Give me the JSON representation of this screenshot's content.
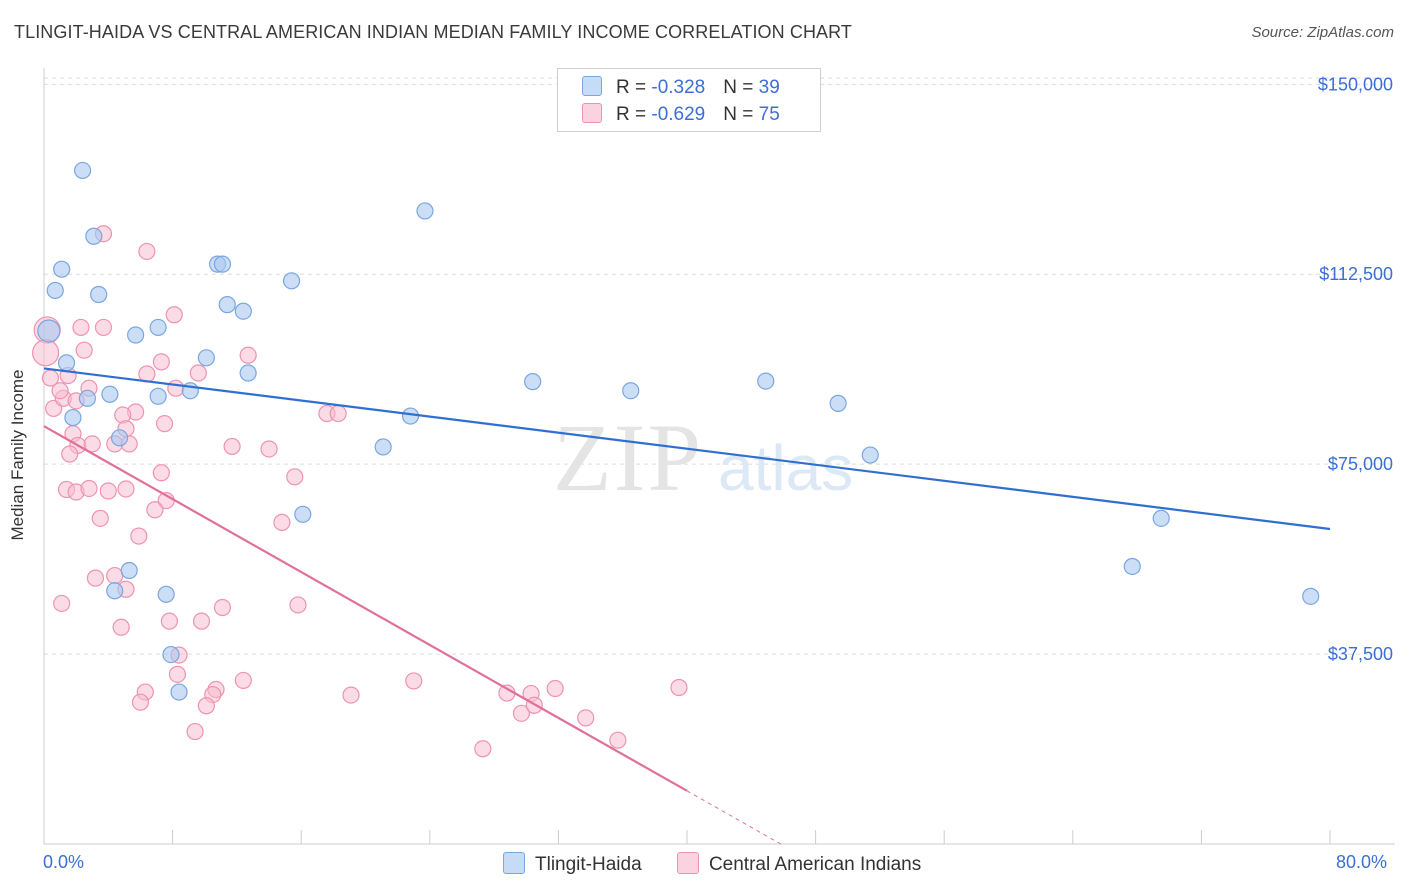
{
  "title": "TLINGIT-HAIDA VS CENTRAL AMERICAN INDIAN MEDIAN FAMILY INCOME CORRELATION CHART",
  "source": "Source: ZipAtlas.com",
  "watermark": {
    "zip": "ZIP",
    "atlas": "atlas"
  },
  "colors": {
    "blue_fill": "#a8c8f0",
    "blue_stroke": "#7aa6e0",
    "blue_line": "#2f6fcf",
    "pink_fill": "#f7bdd0",
    "pink_stroke": "#ee93b0",
    "pink_line": "#e0709a",
    "grid": "#dcdcdc",
    "axis_text": "#3b6fd4"
  },
  "legend_top": [
    {
      "series": "Tlingit-Haida",
      "r_label": "R = ",
      "r": "-0.328",
      "n_label": "N = ",
      "n": "39"
    },
    {
      "series": "Central American Indians",
      "r_label": "R = ",
      "r": "-0.629",
      "n_label": "N = ",
      "n": "75"
    }
  ],
  "chart_data": {
    "type": "scatter",
    "title": "TLINGIT-HAIDA VS CENTRAL AMERICAN INDIAN MEDIAN FAMILY INCOME CORRELATION CHART",
    "xlabel": "",
    "ylabel": "Median Family Income",
    "xlim": [
      0,
      80
    ],
    "ylim": [
      0,
      155000
    ],
    "x_tick_labels": [
      "0.0%",
      "80.0%"
    ],
    "y_ticks": [
      37500,
      75000,
      112500,
      150000
    ],
    "y_tick_labels": [
      "$37,500",
      "$75,000",
      "$112,500",
      "$150,000"
    ],
    "legend_position": "top-center",
    "series": [
      {
        "name": "Tlingit-Haida",
        "r": -0.328,
        "n": 39,
        "trend": {
          "x": [
            0,
            80
          ],
          "y": [
            93900,
            62200
          ]
        },
        "points": [
          [
            2.4,
            133000
          ],
          [
            3.1,
            120000
          ],
          [
            1.1,
            113500
          ],
          [
            0.7,
            109300
          ],
          [
            3.4,
            108500
          ],
          [
            10.8,
            114500
          ],
          [
            11.1,
            114500
          ],
          [
            15.4,
            111200
          ],
          [
            23.7,
            125000
          ],
          [
            11.4,
            106500
          ],
          [
            12.4,
            105200
          ],
          [
            7.1,
            102000
          ],
          [
            5.7,
            100500
          ],
          [
            0.3,
            101300
          ],
          [
            10.1,
            96000
          ],
          [
            1.4,
            95000
          ],
          [
            12.7,
            93000
          ],
          [
            9.1,
            89500
          ],
          [
            7.1,
            88400
          ],
          [
            4.1,
            88800
          ],
          [
            2.7,
            88000
          ],
          [
            1.8,
            84200
          ],
          [
            22.8,
            84500
          ],
          [
            4.7,
            80200
          ],
          [
            21.1,
            78400
          ],
          [
            30.4,
            91300
          ],
          [
            36.5,
            89500
          ],
          [
            44.9,
            91400
          ],
          [
            49.4,
            87000
          ],
          [
            51.4,
            76800
          ],
          [
            16.1,
            65100
          ],
          [
            69.5,
            64300
          ],
          [
            67.7,
            54800
          ],
          [
            78.8,
            48900
          ],
          [
            5.3,
            54000
          ],
          [
            7.6,
            49300
          ],
          [
            4.4,
            50000
          ],
          [
            7.9,
            37400
          ],
          [
            8.4,
            30000
          ]
        ]
      },
      {
        "name": "Central American Indians",
        "r": -0.629,
        "n": 75,
        "trend": {
          "x": [
            0,
            40
          ],
          "y": [
            82500,
            10500
          ]
        },
        "trend_dashed": {
          "x": [
            40,
            46
          ],
          "y": [
            10500,
            -300
          ]
        },
        "points": [
          [
            0.2,
            101500
          ],
          [
            0.1,
            97000
          ],
          [
            0.4,
            92000
          ],
          [
            0.6,
            86000
          ],
          [
            1.2,
            88000
          ],
          [
            2.3,
            102000
          ],
          [
            2.5,
            97500
          ],
          [
            3.7,
            102000
          ],
          [
            6.4,
            117000
          ],
          [
            3.7,
            120500
          ],
          [
            8.1,
            104500
          ],
          [
            7.3,
            95200
          ],
          [
            6.4,
            92800
          ],
          [
            1.5,
            92500
          ],
          [
            8.2,
            90000
          ],
          [
            12.7,
            96500
          ],
          [
            9.6,
            93000
          ],
          [
            2.8,
            90000
          ],
          [
            1.0,
            89500
          ],
          [
            2.0,
            87500
          ],
          [
            5.7,
            85300
          ],
          [
            4.9,
            84700
          ],
          [
            7.5,
            83000
          ],
          [
            5.1,
            82000
          ],
          [
            1.8,
            81000
          ],
          [
            17.6,
            85000
          ],
          [
            18.3,
            85000
          ],
          [
            2.1,
            78700
          ],
          [
            3.0,
            79000
          ],
          [
            4.4,
            79000
          ],
          [
            5.3,
            79000
          ],
          [
            1.6,
            77000
          ],
          [
            11.7,
            78500
          ],
          [
            14.0,
            78000
          ],
          [
            7.3,
            73300
          ],
          [
            15.6,
            72500
          ],
          [
            1.4,
            70000
          ],
          [
            2.0,
            69500
          ],
          [
            2.8,
            70200
          ],
          [
            4.0,
            69700
          ],
          [
            5.1,
            70100
          ],
          [
            7.6,
            67800
          ],
          [
            6.9,
            66000
          ],
          [
            3.5,
            64300
          ],
          [
            14.8,
            63500
          ],
          [
            5.9,
            60800
          ],
          [
            3.2,
            52500
          ],
          [
            4.4,
            53000
          ],
          [
            5.1,
            50300
          ],
          [
            1.1,
            47500
          ],
          [
            11.1,
            46700
          ],
          [
            15.8,
            47200
          ],
          [
            7.8,
            44000
          ],
          [
            9.8,
            44000
          ],
          [
            4.8,
            42800
          ],
          [
            8.4,
            37300
          ],
          [
            8.3,
            33500
          ],
          [
            6.3,
            30000
          ],
          [
            10.7,
            30500
          ],
          [
            12.4,
            32300
          ],
          [
            10.5,
            29500
          ],
          [
            19.1,
            29400
          ],
          [
            23.0,
            32200
          ],
          [
            28.8,
            29800
          ],
          [
            30.3,
            29700
          ],
          [
            31.8,
            30700
          ],
          [
            39.5,
            30900
          ],
          [
            6.0,
            28000
          ],
          [
            10.1,
            27300
          ],
          [
            29.7,
            25800
          ],
          [
            30.5,
            27400
          ],
          [
            33.7,
            24900
          ],
          [
            35.7,
            20500
          ],
          [
            27.3,
            18800
          ],
          [
            9.4,
            22200
          ]
        ]
      }
    ]
  },
  "bottom_legend": [
    "Tlingit-Haida",
    "Central American Indians"
  ]
}
